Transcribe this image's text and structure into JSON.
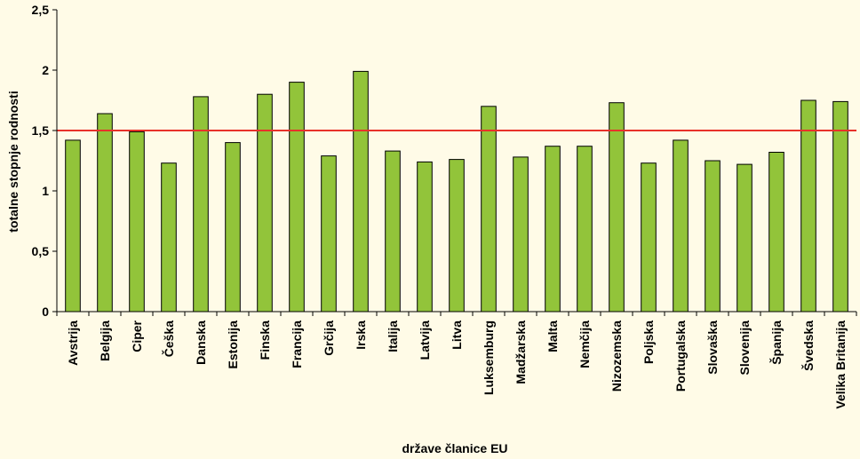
{
  "chart_data": {
    "type": "bar",
    "title": "",
    "xlabel": "države članice EU",
    "ylabel": "totalne stopnje rodnosti",
    "ylim": [
      0,
      2.5
    ],
    "yticks": [
      {
        "value": 0,
        "label": "0"
      },
      {
        "value": 0.5,
        "label": "0,5"
      },
      {
        "value": 1,
        "label": "1"
      },
      {
        "value": 1.5,
        "label": "1,5"
      },
      {
        "value": 2,
        "label": "2"
      },
      {
        "value": 2.5,
        "label": "2,5"
      }
    ],
    "categories": [
      "Avstrija",
      "Belgija",
      "Ciper",
      "Češka",
      "Danska",
      "Estonija",
      "Finska",
      "Francija",
      "Grčija",
      "Irska",
      "Italija",
      "Latvija",
      "Litva",
      "Luksemburg",
      "Madžarska",
      "Malta",
      "Nemčija",
      "Nizozemska",
      "Poljska",
      "Portugalska",
      "Slovaška",
      "Slovenija",
      "Španija",
      "Švedska",
      "Velika Britanija"
    ],
    "values": [
      1.42,
      1.64,
      1.49,
      1.23,
      1.78,
      1.4,
      1.8,
      1.9,
      1.29,
      1.99,
      1.33,
      1.24,
      1.26,
      1.7,
      1.28,
      1.37,
      1.37,
      1.73,
      1.23,
      1.42,
      1.25,
      1.22,
      1.32,
      1.75,
      1.74
    ],
    "reference_line": {
      "value": 1.5,
      "color": "#e8312a"
    },
    "bar_color": "#92c43a",
    "bar_stroke": "#000000",
    "grid": false,
    "legend": "none"
  }
}
